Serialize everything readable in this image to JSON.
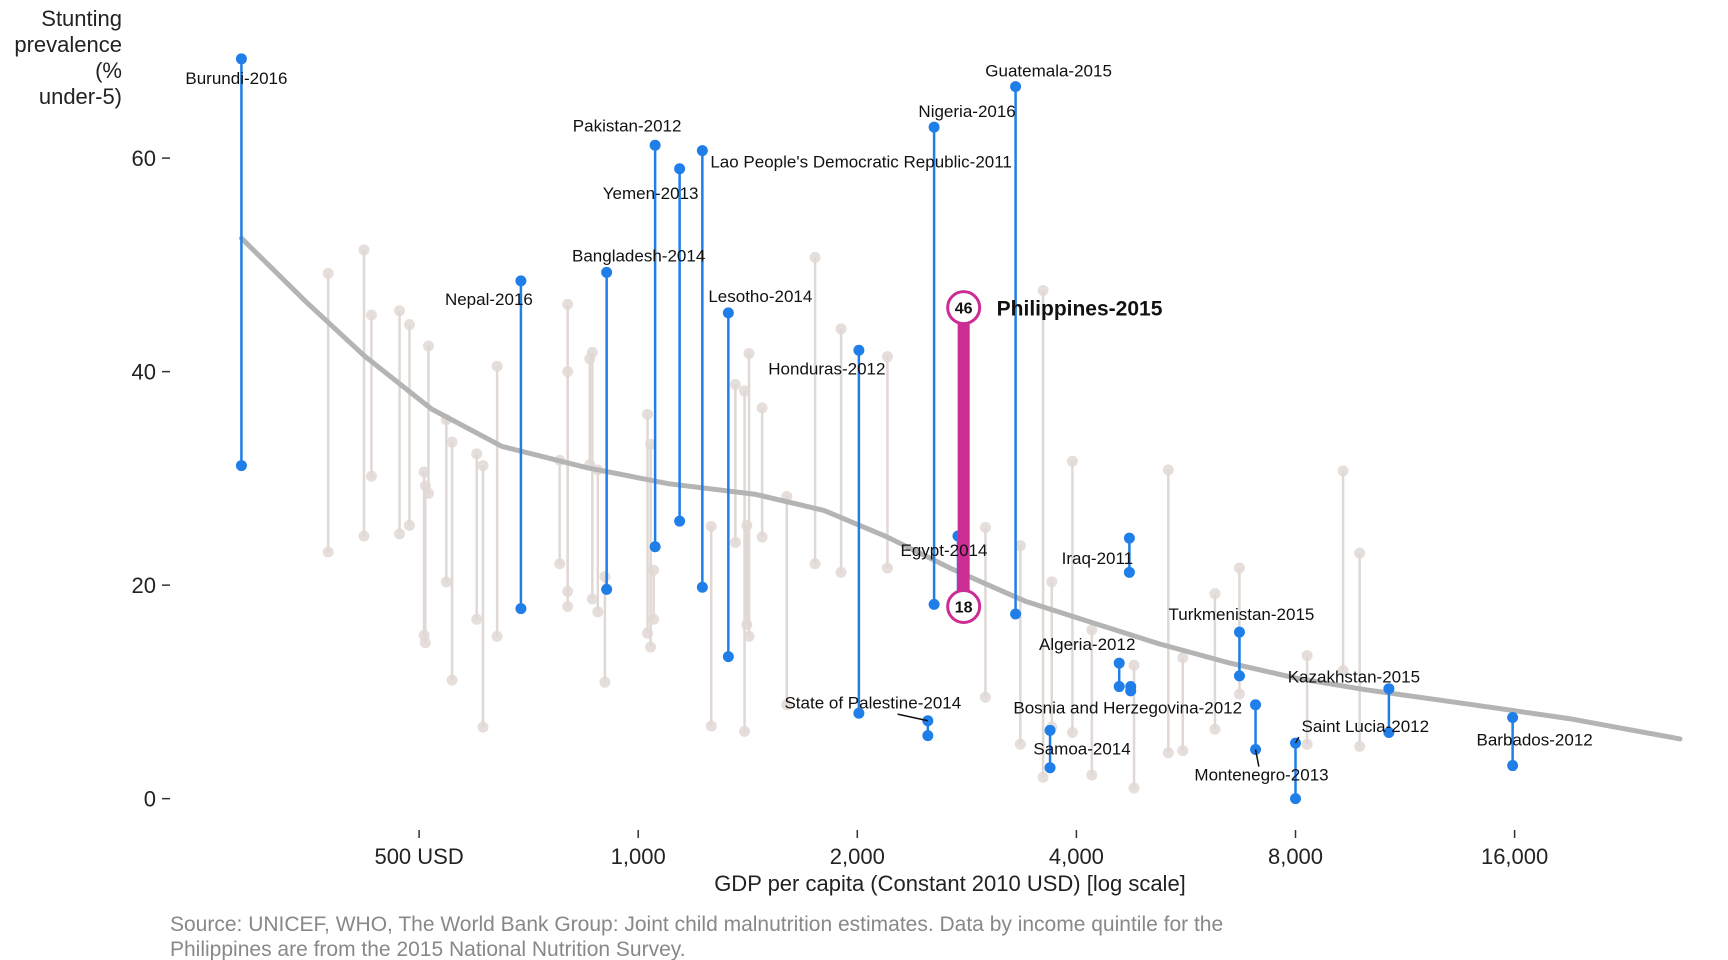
{
  "chart_data": {
    "type": "scatter",
    "ylabel_lines": [
      "Stunting",
      "prevalence",
      "(%",
      "under-5)"
    ],
    "xlabel": "GDP per capita (Constant 2010 USD) [log scale]",
    "x_scale": "log",
    "xlim": [
      250,
      27000
    ],
    "ylim": [
      -2,
      72
    ],
    "x_ticks": [
      {
        "value": 500,
        "label": "500 USD"
      },
      {
        "value": 1000,
        "label": "1,000"
      },
      {
        "value": 2000,
        "label": "2,000"
      },
      {
        "value": 4000,
        "label": "4,000"
      },
      {
        "value": 8000,
        "label": "8,000"
      },
      {
        "value": 16000,
        "label": "16,000"
      }
    ],
    "y_ticks": [
      {
        "value": 0,
        "label": "0"
      },
      {
        "value": 20,
        "label": "20"
      },
      {
        "value": 40,
        "label": "40"
      },
      {
        "value": 60,
        "label": "60"
      }
    ],
    "colors": {
      "highlight": "#1f7ee8",
      "philippines": "#cc2d94",
      "background": "#e0d8d4",
      "trend": "#b4b4b4"
    },
    "trend_line": [
      {
        "x": 285,
        "y": 52.5
      },
      {
        "x": 350,
        "y": 46.5
      },
      {
        "x": 420,
        "y": 41.5
      },
      {
        "x": 520,
        "y": 36.5
      },
      {
        "x": 650,
        "y": 33
      },
      {
        "x": 850,
        "y": 31
      },
      {
        "x": 1100,
        "y": 29.5
      },
      {
        "x": 1450,
        "y": 28.5
      },
      {
        "x": 1800,
        "y": 27
      },
      {
        "x": 2200,
        "y": 24.5
      },
      {
        "x": 2700,
        "y": 21.5
      },
      {
        "x": 3400,
        "y": 18.5
      },
      {
        "x": 4200,
        "y": 16.5
      },
      {
        "x": 5200,
        "y": 14.5
      },
      {
        "x": 6500,
        "y": 12.7
      },
      {
        "x": 8000,
        "y": 11.3
      },
      {
        "x": 10000,
        "y": 10.2
      },
      {
        "x": 14000,
        "y": 8.8
      },
      {
        "x": 19000,
        "y": 7.5
      },
      {
        "x": 27000,
        "y": 5.6
      }
    ],
    "background_segments": [
      {
        "x": 375,
        "top": 49.2,
        "bottom": 23.1
      },
      {
        "x": 420,
        "top": 51.4,
        "bottom": 24.6
      },
      {
        "x": 430,
        "top": 45.3,
        "bottom": 30.2
      },
      {
        "x": 470,
        "top": 45.7,
        "bottom": 24.8
      },
      {
        "x": 485,
        "top": 44.4,
        "bottom": 25.6
      },
      {
        "x": 508,
        "top": 30.6,
        "bottom": 15.3
      },
      {
        "x": 510,
        "top": 29.3,
        "bottom": 14.6
      },
      {
        "x": 515,
        "top": 42.4,
        "bottom": 28.6
      },
      {
        "x": 545,
        "top": 35.5,
        "bottom": 20.3
      },
      {
        "x": 555,
        "top": 33.4,
        "bottom": 11.1
      },
      {
        "x": 600,
        "top": 32.3,
        "bottom": 16.8
      },
      {
        "x": 612,
        "top": 31.2,
        "bottom": 6.7
      },
      {
        "x": 640,
        "top": 40.5,
        "bottom": 15.2
      },
      {
        "x": 780,
        "top": 31.7,
        "bottom": 22.0
      },
      {
        "x": 800,
        "top": 46.3,
        "bottom": 18.0
      },
      {
        "x": 800,
        "top": 40.0,
        "bottom": 19.4
      },
      {
        "x": 865,
        "top": 41.8,
        "bottom": 18.7
      },
      {
        "x": 858,
        "top": 41.2,
        "bottom": 31.3
      },
      {
        "x": 880,
        "top": 30.8,
        "bottom": 17.5
      },
      {
        "x": 900,
        "top": 20.8,
        "bottom": 10.9
      },
      {
        "x": 1030,
        "top": 36.0,
        "bottom": 15.5
      },
      {
        "x": 1040,
        "top": 33.2,
        "bottom": 14.2
      },
      {
        "x": 1050,
        "top": 21.4,
        "bottom": 16.8
      },
      {
        "x": 1260,
        "top": 25.5,
        "bottom": 6.8
      },
      {
        "x": 1360,
        "top": 38.8,
        "bottom": 24.0
      },
      {
        "x": 1400,
        "top": 38.2,
        "bottom": 6.3
      },
      {
        "x": 1410,
        "top": 25.6,
        "bottom": 16.3
      },
      {
        "x": 1420,
        "top": 41.7,
        "bottom": 15.2
      },
      {
        "x": 1480,
        "top": 36.6,
        "bottom": 24.5
      },
      {
        "x": 1600,
        "top": 28.3,
        "bottom": 8.8
      },
      {
        "x": 1750,
        "top": 50.7,
        "bottom": 22.0
      },
      {
        "x": 1900,
        "top": 44.0,
        "bottom": 21.2
      },
      {
        "x": 2200,
        "top": 41.4,
        "bottom": 21.6
      },
      {
        "x": 3000,
        "top": 25.4,
        "bottom": 9.5
      },
      {
        "x": 3350,
        "top": 23.7,
        "bottom": 5.1
      },
      {
        "x": 3600,
        "top": 47.6,
        "bottom": 2.0
      },
      {
        "x": 3700,
        "top": 20.3,
        "bottom": 6.7
      },
      {
        "x": 3950,
        "top": 31.6,
        "bottom": 6.2
      },
      {
        "x": 4200,
        "top": 15.8,
        "bottom": 2.2
      },
      {
        "x": 4800,
        "top": 12.5,
        "bottom": 1.0
      },
      {
        "x": 5350,
        "top": 30.8,
        "bottom": 4.3
      },
      {
        "x": 5600,
        "top": 13.2,
        "bottom": 4.5
      },
      {
        "x": 6200,
        "top": 19.2,
        "bottom": 6.5
      },
      {
        "x": 6700,
        "top": 21.6,
        "bottom": 9.8
      },
      {
        "x": 8300,
        "top": 13.4,
        "bottom": 5.1
      },
      {
        "x": 9300,
        "top": 30.7,
        "bottom": 12.0
      },
      {
        "x": 9800,
        "top": 23.0,
        "bottom": 4.9
      }
    ],
    "highlighted": [
      {
        "name": "Burundi-2016",
        "x": 285,
        "top": 69.3,
        "bottom": 31.2
      },
      {
        "name": "Nepal-2016",
        "x": 690,
        "top": 48.5,
        "bottom": 17.8
      },
      {
        "name": "Bangladesh-2014",
        "x": 905,
        "top": 49.3,
        "bottom": 19.6
      },
      {
        "name": "Pakistan-2012",
        "x": 1055,
        "top": 61.2,
        "bottom": 23.6
      },
      {
        "name": "Yemen-2013",
        "x": 1140,
        "top": 59.0,
        "bottom": 26.0
      },
      {
        "name": "Lao People's Democratic Republic-2011",
        "x": 1225,
        "top": 60.7,
        "bottom": 19.8
      },
      {
        "name": "Lesotho-2014",
        "x": 1330,
        "top": 45.5,
        "bottom": 13.3
      },
      {
        "name": "Honduras-2012",
        "x": 2010,
        "top": 42.0,
        "bottom": 8.0
      },
      {
        "name": "Nigeria-2016",
        "x": 2550,
        "top": 62.9,
        "bottom": 18.2
      },
      {
        "name": "Guatemala-2015",
        "x": 3300,
        "top": 66.7,
        "bottom": 17.3
      },
      {
        "name": "State of Palestine-2014",
        "x": 2500,
        "top": 7.3,
        "bottom": 5.9
      },
      {
        "name": "Egypt-2014",
        "x": 2750,
        "top": 24.6,
        "bottom": 17.5
      },
      {
        "name": "Samoa-2014",
        "x": 3680,
        "top": 6.4,
        "bottom": 2.9
      },
      {
        "name": "Iraq-2011",
        "x": 4730,
        "top": 24.4,
        "bottom": 21.2
      },
      {
        "name": "Algeria-2012",
        "x": 4580,
        "top": 12.7,
        "bottom": 10.5
      },
      {
        "name": "Bosnia and Herzegovina-2012",
        "x": 4750,
        "top": 10.5,
        "bottom": 10.1
      },
      {
        "name": "Turkmenistan-2015",
        "x": 6700,
        "top": 15.6,
        "bottom": 11.5
      },
      {
        "name": "Montenegro-2013",
        "x": 7050,
        "top": 8.8,
        "bottom": 4.6
      },
      {
        "name": "Saint Lucia-2012",
        "x": 8000,
        "top": 5.2,
        "bottom": 0.0
      },
      {
        "name": "Kazakhstan-2015",
        "x": 10750,
        "top": 10.3,
        "bottom": 6.2
      },
      {
        "name": "Barbados-2012",
        "x": 15900,
        "top": 7.6,
        "bottom": 3.1
      }
    ],
    "philippines": {
      "name": "Philippines-2015",
      "x": 2800,
      "top": 46,
      "bottom": 18,
      "top_label": "46",
      "bottom_label": "18"
    },
    "source_lines": [
      "Source: UNICEF, WHO, The World Bank Group: Joint child malnutrition estimates. Data by income quintile for the",
      "Philippines are from the 2015 National Nutrition Survey."
    ]
  }
}
